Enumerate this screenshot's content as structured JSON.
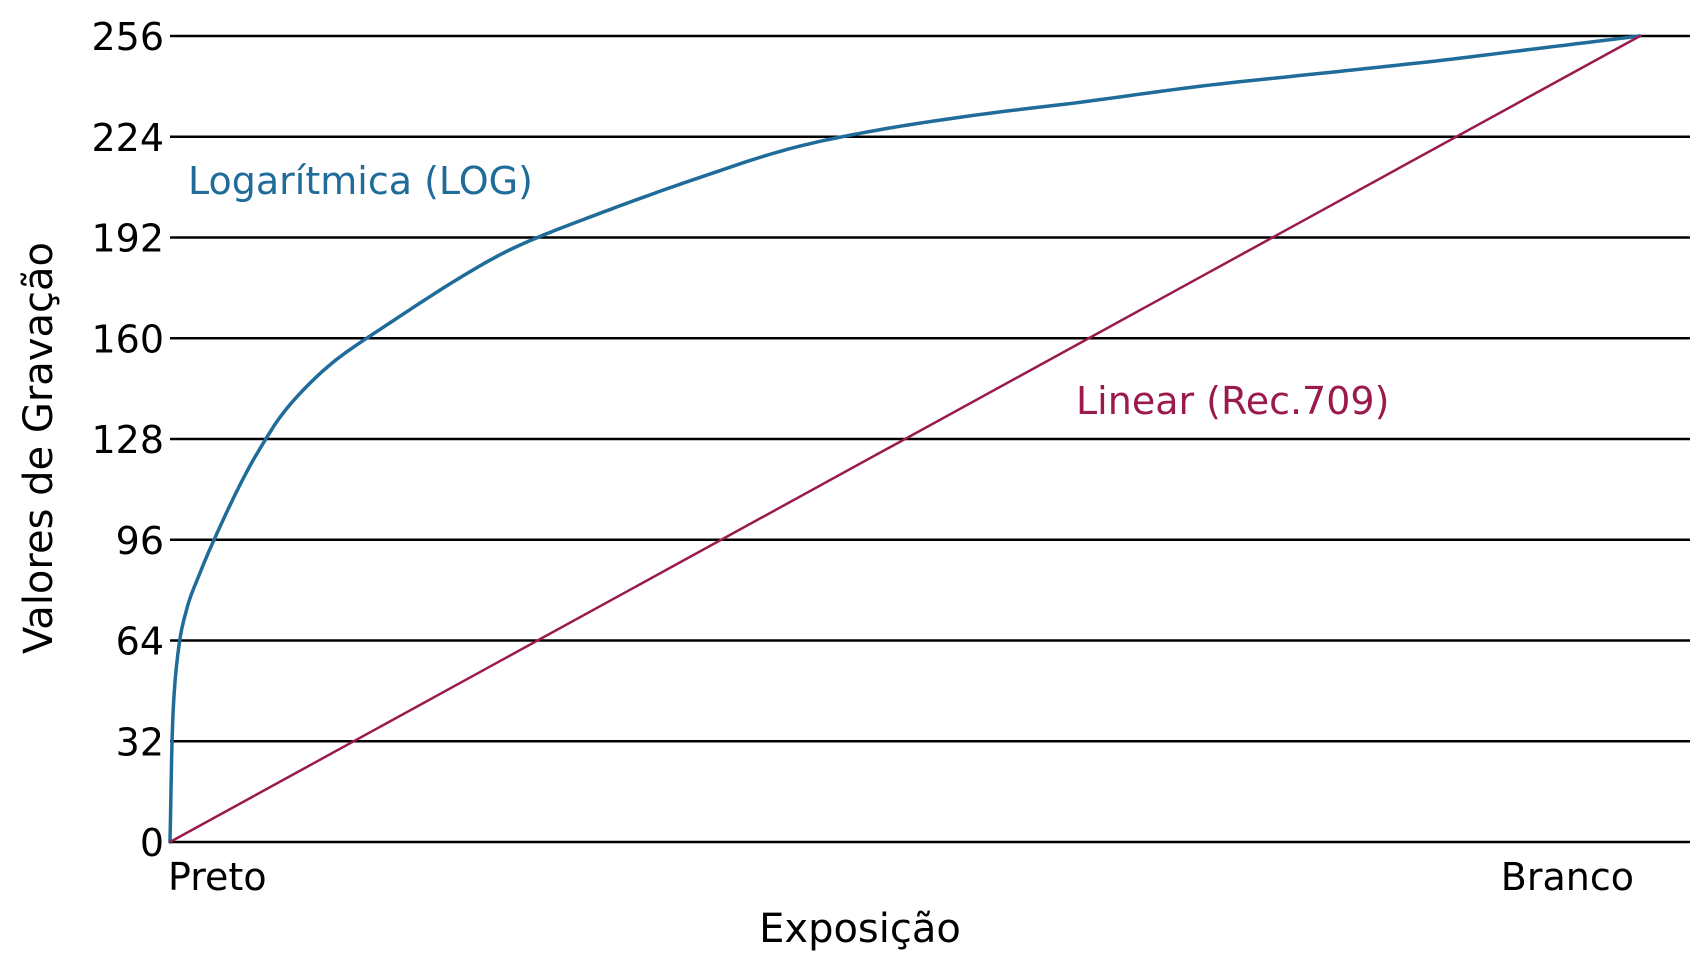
{
  "chart_data": {
    "type": "line",
    "title": "",
    "xlabel": "Exposição",
    "ylabel": "Valores de Gravação",
    "x_start_label": "Preto",
    "x_end_label": "Branco",
    "ylim": [
      0,
      256
    ],
    "xlim": [
      0,
      1
    ],
    "y_ticks": [
      0,
      32,
      64,
      96,
      128,
      160,
      192,
      224,
      256
    ],
    "grid": "horizontal",
    "series": [
      {
        "name": "Logarítmica (LOG)",
        "color": "#1f6b99",
        "x": [
          0,
          0.002,
          0.006,
          0.012,
          0.02,
          0.03,
          0.045,
          0.06,
          0.08,
          0.11,
          0.15,
          0.2,
          0.24,
          0.3,
          0.36,
          0.42,
          0.48,
          0.55,
          0.62,
          0.7,
          0.78,
          0.86,
          0.93,
          1.0
        ],
        "values": [
          0,
          40,
          62,
          75,
          85,
          96,
          111,
          124,
          138,
          152,
          165,
          180,
          190,
          201,
          211,
          220,
          226,
          231,
          235,
          240,
          244,
          248,
          252,
          256
        ]
      },
      {
        "name": "Linear (Rec.709)",
        "color": "#9b1a4e",
        "x": [
          0,
          1
        ],
        "values": [
          0,
          256
        ]
      }
    ]
  }
}
